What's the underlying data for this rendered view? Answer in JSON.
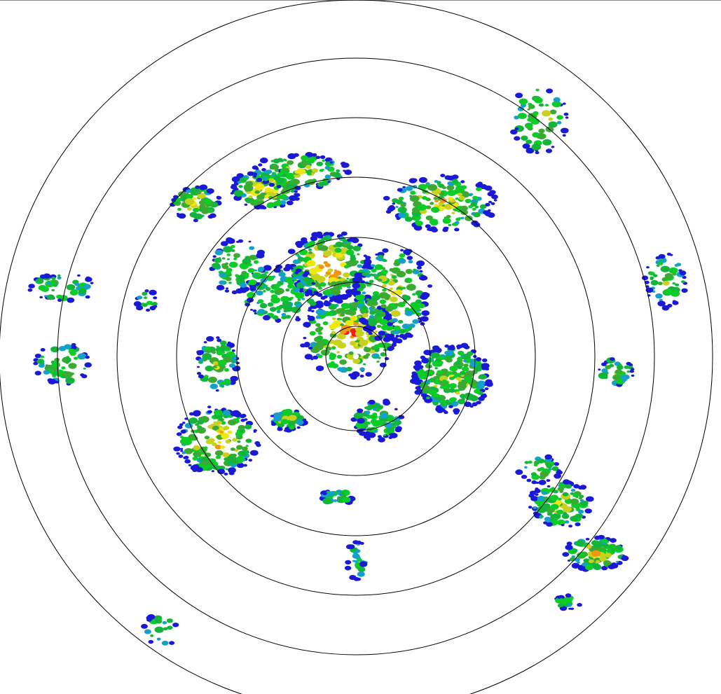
{
  "display": {
    "type": "radar-ppi",
    "range_ring_count": 7,
    "background": "#ffffff",
    "ring_color": "#000000"
  },
  "reflectivity_palette": [
    "#1a1ad6",
    "#14a0c8",
    "#12b43c",
    "#0ccc28",
    "#3caa32",
    "#c8d21e",
    "#f0e614",
    "#f09614",
    "#f01e14"
  ]
}
